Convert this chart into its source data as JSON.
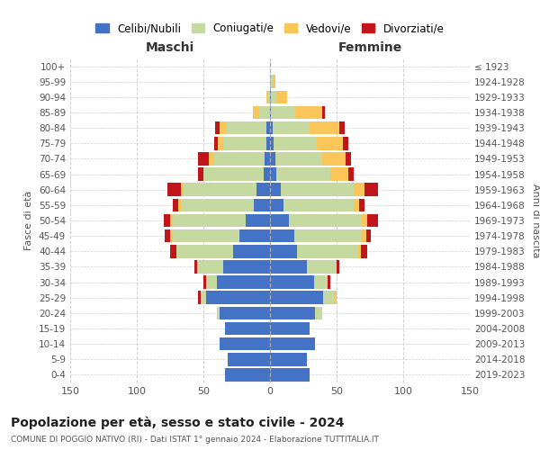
{
  "age_groups": [
    "0-4",
    "5-9",
    "10-14",
    "15-19",
    "20-24",
    "25-29",
    "30-34",
    "35-39",
    "40-44",
    "45-49",
    "50-54",
    "55-59",
    "60-64",
    "65-69",
    "70-74",
    "75-79",
    "80-84",
    "85-89",
    "90-94",
    "95-99",
    "100+"
  ],
  "birth_years": [
    "2019-2023",
    "2014-2018",
    "2009-2013",
    "2004-2008",
    "1999-2003",
    "1994-1998",
    "1989-1993",
    "1984-1988",
    "1979-1983",
    "1974-1978",
    "1969-1973",
    "1964-1968",
    "1959-1963",
    "1954-1958",
    "1949-1953",
    "1944-1948",
    "1939-1943",
    "1934-1938",
    "1929-1933",
    "1924-1928",
    "≤ 1923"
  ],
  "maschi": {
    "celibi": [
      34,
      32,
      38,
      34,
      38,
      48,
      40,
      35,
      28,
      23,
      18,
      12,
      10,
      5,
      4,
      3,
      3,
      0,
      0,
      0,
      0
    ],
    "coniugati": [
      0,
      0,
      0,
      0,
      2,
      4,
      8,
      20,
      42,
      50,
      55,
      55,
      55,
      45,
      38,
      32,
      30,
      8,
      2,
      0,
      0
    ],
    "vedovi": [
      0,
      0,
      0,
      0,
      0,
      0,
      0,
      0,
      0,
      2,
      2,
      2,
      2,
      0,
      4,
      4,
      5,
      5,
      1,
      0,
      0
    ],
    "divorziati": [
      0,
      0,
      0,
      0,
      0,
      2,
      2,
      2,
      5,
      4,
      5,
      4,
      10,
      4,
      8,
      3,
      3,
      0,
      0,
      0,
      0
    ]
  },
  "femmine": {
    "nubili": [
      30,
      28,
      34,
      30,
      34,
      40,
      33,
      28,
      20,
      18,
      14,
      10,
      8,
      5,
      4,
      3,
      2,
      1,
      1,
      0,
      0
    ],
    "coniugate": [
      0,
      0,
      0,
      0,
      5,
      8,
      10,
      22,
      46,
      50,
      55,
      53,
      55,
      40,
      35,
      32,
      28,
      18,
      4,
      2,
      0
    ],
    "vedove": [
      0,
      0,
      0,
      0,
      0,
      2,
      0,
      0,
      2,
      4,
      4,
      4,
      8,
      14,
      18,
      20,
      22,
      20,
      8,
      2,
      0
    ],
    "divorziate": [
      0,
      0,
      0,
      0,
      0,
      0,
      2,
      2,
      5,
      4,
      8,
      4,
      10,
      4,
      4,
      4,
      4,
      2,
      0,
      0,
      0
    ]
  },
  "colors": {
    "celibi": "#4472C4",
    "coniugati": "#C5D9A0",
    "vedovi": "#FAC65A",
    "divorziati": "#C0151B"
  },
  "title": "Popolazione per età, sesso e stato civile - 2024",
  "subtitle": "COMUNE DI POGGIO NATIVO (RI) - Dati ISTAT 1° gennaio 2024 - Elaborazione TUTTITALIA.IT",
  "xlabel_left": "Maschi",
  "xlabel_right": "Femmine",
  "ylabel_left": "Fasce di età",
  "ylabel_right": "Anni di nascita",
  "xlim": 150,
  "bg_color": "#ffffff",
  "grid_color": "#cccccc"
}
